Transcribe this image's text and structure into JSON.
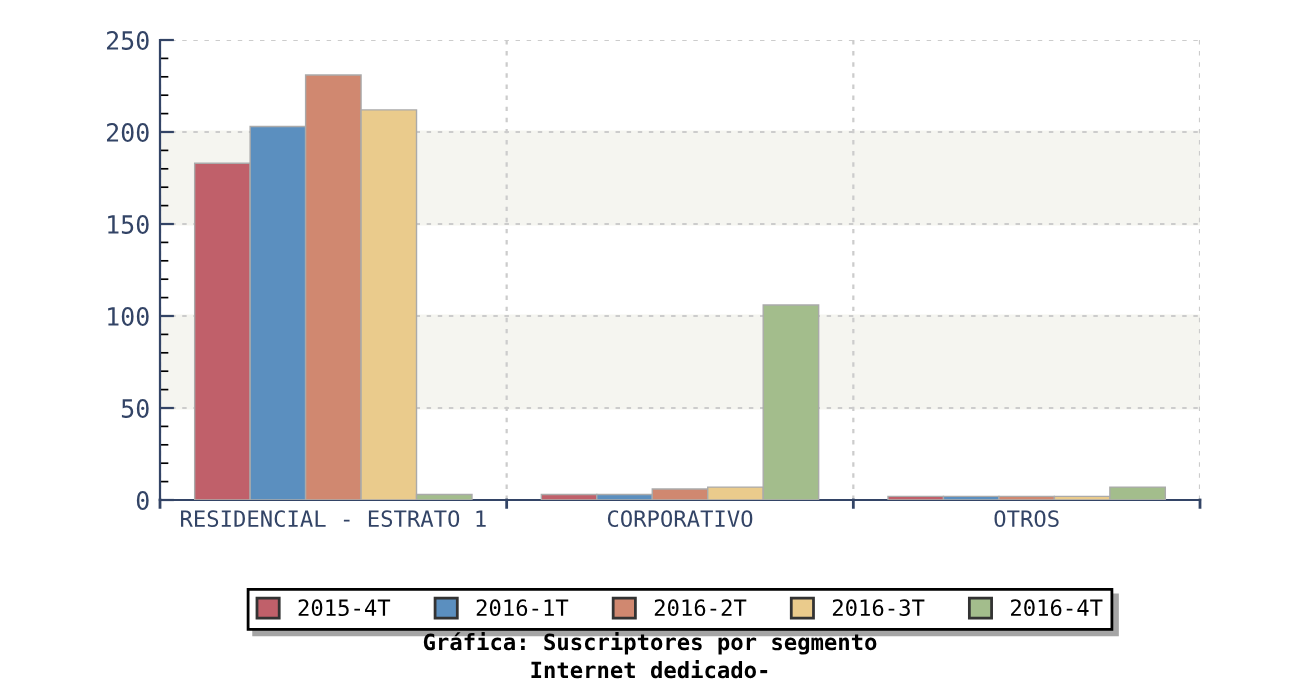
{
  "chart_data": {
    "type": "bar",
    "title": "Gráfica: Suscriptores por segmento",
    "subtitle": "Internet dedicado-",
    "categories": [
      "RESIDENCIAL - ESTRATO 1",
      "CORPORATIVO",
      "OTROS"
    ],
    "series": [
      {
        "name": "2015-4T",
        "color": "#c0606a",
        "values": [
          183,
          3,
          2
        ]
      },
      {
        "name": "2016-1T",
        "color": "#5b8fbf",
        "values": [
          203,
          3,
          2
        ]
      },
      {
        "name": "2016-2T",
        "color": "#d08870",
        "values": [
          231,
          6,
          2
        ]
      },
      {
        "name": "2016-3T",
        "color": "#eacb8c",
        "values": [
          212,
          7,
          2
        ]
      },
      {
        "name": "2016-4T",
        "color": "#a3bd8c",
        "values": [
          3,
          106,
          7
        ]
      }
    ],
    "ylim": [
      0,
      250
    ],
    "yticks": [
      0,
      50,
      100,
      150,
      200,
      250
    ],
    "bands": [
      {
        "axis": "y",
        "from": 50,
        "to": 100,
        "color": "#f5f5f0"
      },
      {
        "axis": "y",
        "from": 150,
        "to": 200,
        "color": "#f5f5f0"
      }
    ],
    "grid": true,
    "legend": "bottom"
  }
}
